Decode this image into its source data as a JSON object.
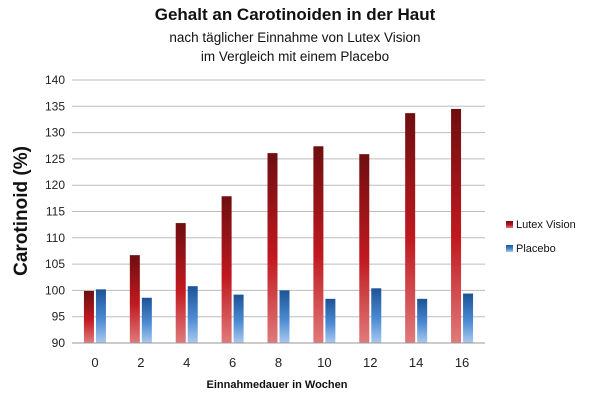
{
  "chart_data": {
    "type": "bar",
    "title": "Gehalt an Carotinoiden in der Haut",
    "subtitle_lines": [
      "nach täglicher Einnahme von Lutex Vision",
      "im Vergleich mit einem Placebo"
    ],
    "xlabel": "Einnahmedauer in Wochen",
    "ylabel": "Carotinoid (%)",
    "categories": [
      "0",
      "2",
      "4",
      "6",
      "8",
      "10",
      "12",
      "14",
      "16"
    ],
    "ylim": [
      90,
      140
    ],
    "yticks": [
      90,
      95,
      100,
      105,
      110,
      115,
      120,
      125,
      130,
      135,
      140
    ],
    "grid": true,
    "legend_position": "right",
    "series": [
      {
        "name": "Lutex Vision",
        "color": "#b3161c",
        "values": [
          99.9,
          106.7,
          112.8,
          117.9,
          126.1,
          127.4,
          125.9,
          133.7,
          134.5
        ]
      },
      {
        "name": "Placebo",
        "color": "#2e6fb8",
        "values": [
          100.2,
          98.6,
          100.8,
          99.2,
          100.0,
          98.4,
          100.4,
          98.4,
          99.4
        ]
      }
    ]
  }
}
